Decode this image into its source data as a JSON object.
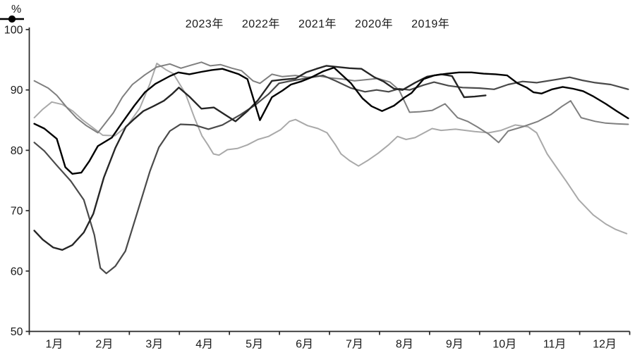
{
  "chart_data": {
    "type": "line",
    "title": "",
    "ylabel": "%",
    "ylim": [
      50,
      100
    ],
    "y_ticks": [
      100,
      90,
      80,
      70,
      60,
      50
    ],
    "x_labels": [
      "1月",
      "2月",
      "3月",
      "4月",
      "5月",
      "6月",
      "7月",
      "8月",
      "9月",
      "10月",
      "11月",
      "12月"
    ],
    "x_range_months": [
      0,
      12
    ],
    "grid": false,
    "legend_position": "top",
    "axis_color": "#262626",
    "series": [
      {
        "name": "2023年",
        "color": "#262626",
        "width": 2.4,
        "points": [
          [
            0.1,
            66.7
          ],
          [
            0.27,
            65.2
          ],
          [
            0.48,
            63.9
          ],
          [
            0.66,
            63.5
          ],
          [
            0.86,
            64.3
          ],
          [
            1.09,
            66.4
          ],
          [
            1.28,
            69.5
          ],
          [
            1.49,
            75.5
          ],
          [
            1.72,
            80.4
          ],
          [
            1.93,
            83.9
          ],
          [
            2.1,
            85.2
          ],
          [
            2.28,
            86.5
          ],
          [
            2.48,
            87.3
          ],
          [
            2.69,
            88.2
          ],
          [
            2.85,
            89.3
          ],
          [
            2.99,
            90.4
          ],
          [
            3.2,
            88.9
          ],
          [
            3.44,
            86.9
          ],
          [
            3.69,
            87.1
          ],
          [
            3.91,
            85.9
          ],
          [
            4.12,
            84.8
          ],
          [
            4.36,
            86.5
          ],
          [
            4.57,
            88.3
          ],
          [
            4.85,
            91.5
          ],
          [
            5.06,
            91.7
          ],
          [
            5.32,
            91.9
          ],
          [
            5.53,
            92.9
          ],
          [
            5.74,
            93.5
          ],
          [
            5.94,
            94.0
          ],
          [
            6.16,
            93.8
          ],
          [
            6.4,
            93.6
          ],
          [
            6.64,
            93.5
          ],
          [
            6.9,
            92.1
          ],
          [
            7.08,
            91.4
          ],
          [
            7.29,
            90.2
          ],
          [
            7.46,
            90.0
          ],
          [
            7.71,
            91.2
          ],
          [
            7.95,
            92.2
          ],
          [
            8.23,
            92.6
          ],
          [
            8.45,
            92.3
          ],
          [
            8.69,
            88.8
          ],
          [
            8.9,
            88.9
          ],
          [
            9.12,
            89.1
          ]
        ]
      },
      {
        "name": "2022年",
        "color": "#a9a9a9",
        "width": 2.0,
        "points": [
          [
            0.1,
            85.4
          ],
          [
            0.27,
            86.8
          ],
          [
            0.45,
            88.0
          ],
          [
            0.66,
            87.6
          ],
          [
            0.87,
            86.5
          ],
          [
            1.07,
            85.0
          ],
          [
            1.25,
            83.9
          ],
          [
            1.47,
            82.5
          ],
          [
            1.71,
            82.4
          ],
          [
            1.96,
            84.1
          ],
          [
            2.21,
            87.0
          ],
          [
            2.41,
            91.0
          ],
          [
            2.55,
            94.4
          ],
          [
            2.74,
            93.3
          ],
          [
            2.88,
            92.7
          ],
          [
            3.12,
            89.4
          ],
          [
            3.31,
            85.2
          ],
          [
            3.45,
            82.4
          ],
          [
            3.57,
            80.9
          ],
          [
            3.68,
            79.4
          ],
          [
            3.79,
            79.2
          ],
          [
            3.96,
            80.1
          ],
          [
            4.16,
            80.3
          ],
          [
            4.36,
            80.9
          ],
          [
            4.57,
            81.8
          ],
          [
            4.78,
            82.3
          ],
          [
            5.02,
            83.4
          ],
          [
            5.2,
            84.8
          ],
          [
            5.32,
            85.1
          ],
          [
            5.56,
            84.1
          ],
          [
            5.77,
            83.6
          ],
          [
            5.95,
            82.9
          ],
          [
            6.12,
            80.9
          ],
          [
            6.23,
            79.4
          ],
          [
            6.4,
            78.3
          ],
          [
            6.58,
            77.4
          ],
          [
            6.78,
            78.4
          ],
          [
            6.97,
            79.5
          ],
          [
            7.18,
            80.9
          ],
          [
            7.36,
            82.3
          ],
          [
            7.53,
            81.8
          ],
          [
            7.71,
            82.1
          ],
          [
            8.05,
            83.6
          ],
          [
            8.23,
            83.3
          ],
          [
            8.52,
            83.5
          ],
          [
            8.9,
            83.1
          ],
          [
            9.18,
            82.9
          ],
          [
            9.43,
            83.3
          ],
          [
            9.71,
            84.2
          ],
          [
            9.97,
            83.9
          ],
          [
            10.14,
            82.9
          ],
          [
            10.35,
            79.4
          ],
          [
            10.56,
            76.9
          ],
          [
            10.73,
            74.9
          ],
          [
            10.98,
            71.8
          ],
          [
            11.27,
            69.3
          ],
          [
            11.52,
            67.8
          ],
          [
            11.72,
            66.9
          ],
          [
            11.94,
            66.2
          ]
        ]
      },
      {
        "name": "2021年",
        "color": "#7f7f7f",
        "width": 2.0,
        "points": [
          [
            0.1,
            91.5
          ],
          [
            0.38,
            90.3
          ],
          [
            0.55,
            89.1
          ],
          [
            0.76,
            87.0
          ],
          [
            0.94,
            85.4
          ],
          [
            1.14,
            84.1
          ],
          [
            1.37,
            82.9
          ],
          [
            1.68,
            86.2
          ],
          [
            1.86,
            88.8
          ],
          [
            2.06,
            90.9
          ],
          [
            2.31,
            92.5
          ],
          [
            2.55,
            93.8
          ],
          [
            2.81,
            94.3
          ],
          [
            3.03,
            93.6
          ],
          [
            3.23,
            94.1
          ],
          [
            3.44,
            94.6
          ],
          [
            3.62,
            94.0
          ],
          [
            3.82,
            94.2
          ],
          [
            4.05,
            93.6
          ],
          [
            4.24,
            93.2
          ],
          [
            4.47,
            91.5
          ],
          [
            4.61,
            91.1
          ],
          [
            4.85,
            92.6
          ],
          [
            5.06,
            92.2
          ],
          [
            5.32,
            92.4
          ],
          [
            5.56,
            92.1
          ],
          [
            5.8,
            92.3
          ],
          [
            6.02,
            92.0
          ],
          [
            6.26,
            91.8
          ],
          [
            6.5,
            91.5
          ],
          [
            6.73,
            91.7
          ],
          [
            6.97,
            91.9
          ],
          [
            7.21,
            91.3
          ],
          [
            7.39,
            90.0
          ],
          [
            7.6,
            86.3
          ],
          [
            7.81,
            86.4
          ],
          [
            8.05,
            86.6
          ],
          [
            8.31,
            87.7
          ],
          [
            8.56,
            85.4
          ],
          [
            8.76,
            84.8
          ],
          [
            8.95,
            83.9
          ],
          [
            9.18,
            82.7
          ],
          [
            9.38,
            81.3
          ],
          [
            9.57,
            83.2
          ],
          [
            9.86,
            83.9
          ],
          [
            10.17,
            84.8
          ],
          [
            10.42,
            85.9
          ],
          [
            10.65,
            87.3
          ],
          [
            10.82,
            88.2
          ],
          [
            11.03,
            85.4
          ],
          [
            11.31,
            84.8
          ],
          [
            11.52,
            84.5
          ],
          [
            11.73,
            84.4
          ],
          [
            11.97,
            84.3
          ]
        ]
      },
      {
        "name": "2020年",
        "color": "#4a4a4a",
        "width": 2.2,
        "points": [
          [
            0.1,
            81.3
          ],
          [
            0.3,
            79.9
          ],
          [
            0.55,
            77.5
          ],
          [
            0.83,
            74.9
          ],
          [
            1.09,
            71.8
          ],
          [
            1.3,
            66.0
          ],
          [
            1.42,
            60.5
          ],
          [
            1.54,
            59.6
          ],
          [
            1.72,
            60.8
          ],
          [
            1.92,
            63.3
          ],
          [
            2.17,
            70.0
          ],
          [
            2.41,
            76.5
          ],
          [
            2.59,
            80.5
          ],
          [
            2.81,
            83.2
          ],
          [
            3.02,
            84.3
          ],
          [
            3.3,
            84.2
          ],
          [
            3.58,
            83.5
          ],
          [
            3.86,
            84.2
          ],
          [
            4.22,
            85.9
          ],
          [
            4.53,
            87.6
          ],
          [
            4.78,
            89.3
          ],
          [
            4.99,
            91.1
          ],
          [
            5.23,
            91.5
          ],
          [
            5.44,
            91.8
          ],
          [
            5.87,
            92.4
          ],
          [
            6.12,
            91.5
          ],
          [
            6.43,
            90.3
          ],
          [
            6.71,
            89.7
          ],
          [
            6.94,
            90.0
          ],
          [
            7.18,
            89.7
          ],
          [
            7.39,
            90.2
          ],
          [
            7.6,
            90.0
          ],
          [
            7.88,
            90.8
          ],
          [
            8.09,
            91.3
          ],
          [
            8.38,
            90.7
          ],
          [
            8.66,
            90.4
          ],
          [
            9.0,
            90.3
          ],
          [
            9.29,
            90.1
          ],
          [
            9.57,
            90.9
          ],
          [
            9.86,
            91.4
          ],
          [
            10.14,
            91.2
          ],
          [
            10.52,
            91.7
          ],
          [
            10.8,
            92.1
          ],
          [
            11.05,
            91.6
          ],
          [
            11.31,
            91.2
          ],
          [
            11.62,
            90.9
          ],
          [
            11.97,
            90.1
          ]
        ]
      },
      {
        "name": "2019年",
        "color": "#000000",
        "width": 2.4,
        "points": [
          [
            0.1,
            84.4
          ],
          [
            0.3,
            83.6
          ],
          [
            0.55,
            81.9
          ],
          [
            0.72,
            77.2
          ],
          [
            0.86,
            76.1
          ],
          [
            1.04,
            76.3
          ],
          [
            1.2,
            78.2
          ],
          [
            1.37,
            80.7
          ],
          [
            1.65,
            82.1
          ],
          [
            1.85,
            84.5
          ],
          [
            2.1,
            87.4
          ],
          [
            2.31,
            89.6
          ],
          [
            2.52,
            91.0
          ],
          [
            2.81,
            92.3
          ],
          [
            2.98,
            92.9
          ],
          [
            3.2,
            92.6
          ],
          [
            3.44,
            93.0
          ],
          [
            3.65,
            93.3
          ],
          [
            3.86,
            93.5
          ],
          [
            4.19,
            92.6
          ],
          [
            4.36,
            91.8
          ],
          [
            4.61,
            85.0
          ],
          [
            4.85,
            88.8
          ],
          [
            5.06,
            89.9
          ],
          [
            5.23,
            90.9
          ],
          [
            5.43,
            91.4
          ],
          [
            5.64,
            92.1
          ],
          [
            5.88,
            93.1
          ],
          [
            6.09,
            93.7
          ],
          [
            6.43,
            91.1
          ],
          [
            6.66,
            88.6
          ],
          [
            6.84,
            87.3
          ],
          [
            7.05,
            86.5
          ],
          [
            7.29,
            87.4
          ],
          [
            7.49,
            88.7
          ],
          [
            7.64,
            89.5
          ],
          [
            7.88,
            91.8
          ],
          [
            8.09,
            92.4
          ],
          [
            8.35,
            92.7
          ],
          [
            8.59,
            92.9
          ],
          [
            8.84,
            92.9
          ],
          [
            9.08,
            92.7
          ],
          [
            9.32,
            92.6
          ],
          [
            9.55,
            92.4
          ],
          [
            9.76,
            91.1
          ],
          [
            9.94,
            90.4
          ],
          [
            10.08,
            89.6
          ],
          [
            10.24,
            89.4
          ],
          [
            10.45,
            90.1
          ],
          [
            10.66,
            90.5
          ],
          [
            10.87,
            90.2
          ],
          [
            11.07,
            89.8
          ],
          [
            11.28,
            88.9
          ],
          [
            11.52,
            87.7
          ],
          [
            11.74,
            86.5
          ],
          [
            11.97,
            85.3
          ]
        ]
      }
    ],
    "draw_order": [
      1,
      2,
      3,
      0,
      4
    ]
  }
}
